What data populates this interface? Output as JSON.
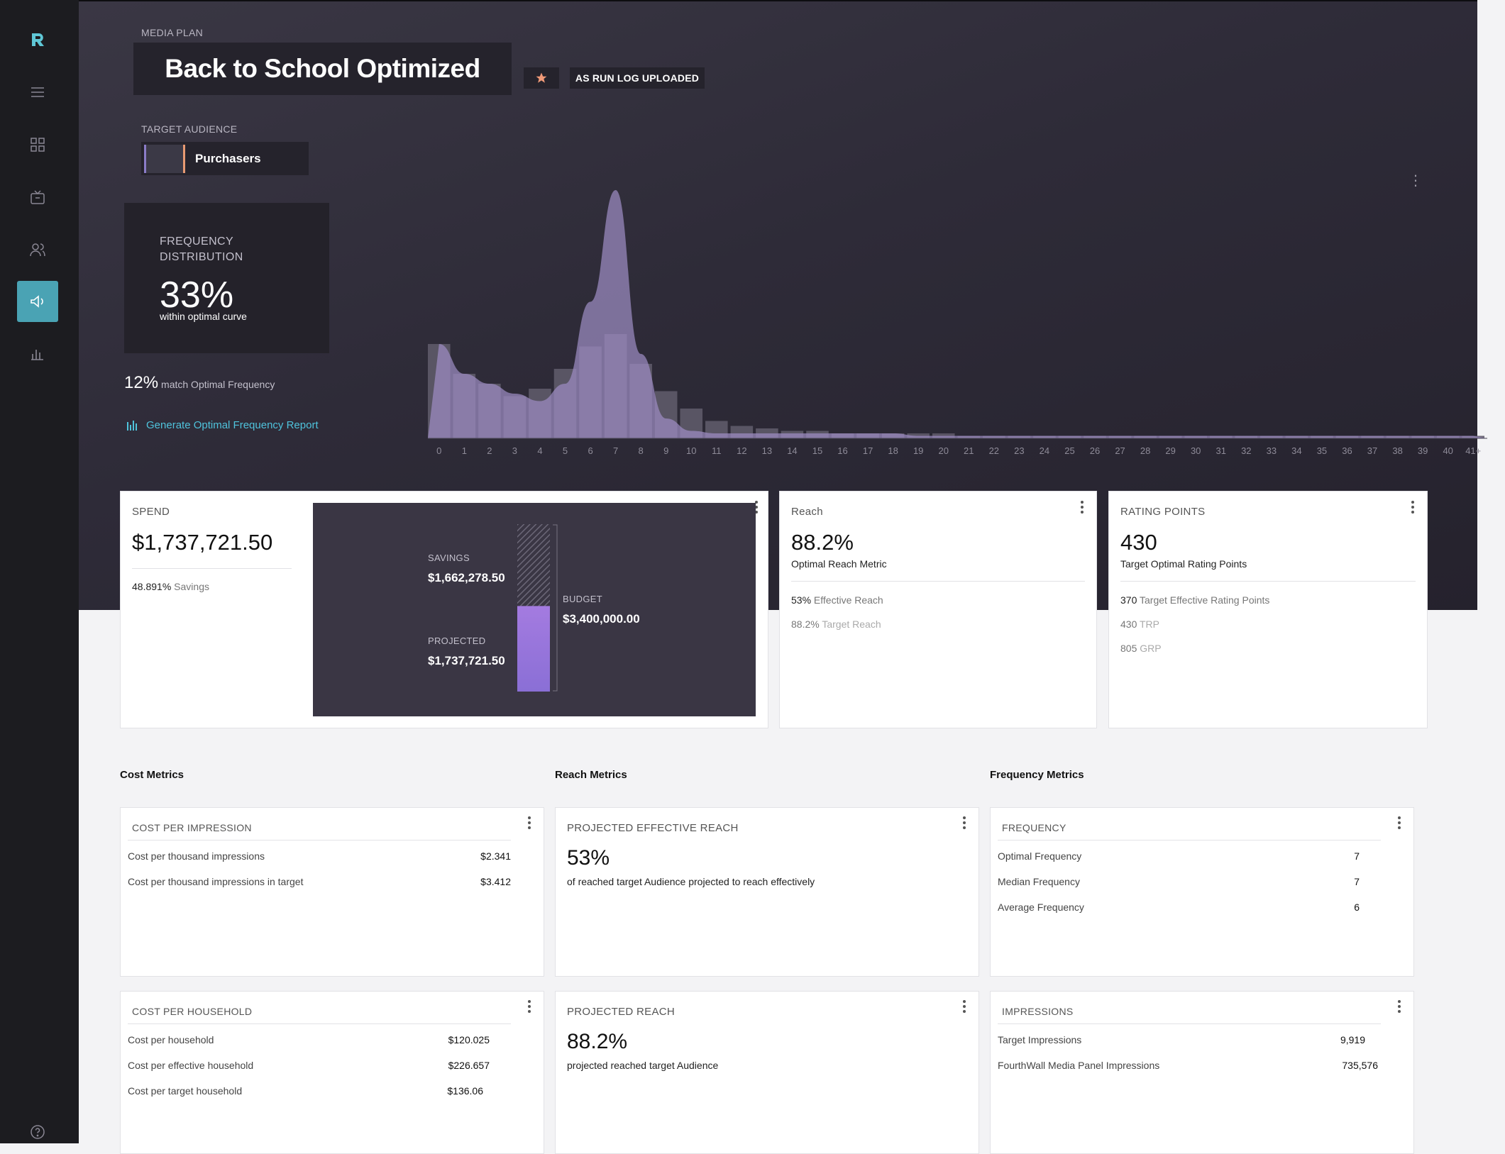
{
  "header": {
    "section_label": "MEDIA PLAN",
    "plan_title": "Back to School Optimized",
    "status_badge": "AS RUN LOG UPLOADED",
    "audience_label": "TARGET AUDIENCE",
    "audience_name": "Purchasers"
  },
  "frequency_distribution": {
    "title": "FREQUENCY DISTRIBUTION",
    "value": "33%",
    "subtitle": "within optimal curve",
    "match_value": "12%",
    "match_text": "match Optimal Frequency",
    "report_link": "Generate Optimal Frequency Report"
  },
  "chart_data": {
    "type": "bar",
    "categories": [
      "0",
      "1",
      "2",
      "3",
      "4",
      "5",
      "6",
      "7",
      "8",
      "9",
      "10",
      "11",
      "12",
      "13",
      "14",
      "15",
      "16",
      "17",
      "18",
      "19",
      "20",
      "21",
      "22",
      "23",
      "24",
      "25",
      "26",
      "27",
      "28",
      "29",
      "30",
      "31",
      "32",
      "33",
      "34",
      "35",
      "36",
      "37",
      "38",
      "39",
      "40",
      "41+"
    ],
    "values": [
      38,
      26,
      22,
      17,
      20,
      28,
      37,
      42,
      30,
      19,
      12,
      7,
      5,
      4,
      3,
      3,
      2,
      2,
      2,
      2,
      2,
      1,
      1,
      1,
      1,
      1,
      1,
      1,
      1,
      1,
      1,
      1,
      1,
      1,
      1,
      1,
      1,
      1,
      1,
      1,
      1,
      1
    ],
    "optimal_curve": [
      38,
      26,
      22,
      18,
      15,
      22,
      55,
      100,
      34,
      8,
      3,
      2,
      2,
      2,
      2,
      2,
      2,
      2,
      2,
      1,
      1,
      1,
      1,
      1,
      1,
      1,
      1,
      1,
      1,
      1,
      1,
      1,
      1,
      1,
      1,
      1,
      1,
      1,
      1,
      1,
      1,
      1
    ],
    "ylim": [
      0,
      100
    ],
    "grid": false,
    "colors": {
      "bar": "#5e5a69",
      "curve": "#9d8cc2"
    }
  },
  "spend": {
    "title": "SPEND",
    "value": "$1,737,721.50",
    "savings_pct": "48.891%",
    "savings_label": "Savings",
    "savings_title": "SAVINGS",
    "savings_value": "$1,662,278.50",
    "projected_title": "PROJECTED",
    "projected_value": "$1,737,721.50",
    "budget_title": "BUDGET",
    "budget_value": "$3,400,000.00",
    "projected_fraction": 0.511
  },
  "reach": {
    "title": "Reach",
    "value": "88.2%",
    "subtitle": "Optimal Reach Metric",
    "rows": [
      {
        "value": "53%",
        "label": "Effective Reach"
      },
      {
        "value": "88.2%",
        "label": "Target Reach"
      }
    ]
  },
  "rating_points": {
    "title": "RATING POINTS",
    "value": "430",
    "subtitle": "Target Optimal Rating Points",
    "rows": [
      {
        "value": "370",
        "label": "Target Effective Rating Points"
      },
      {
        "value": "430",
        "label": "TRP"
      },
      {
        "value": "805",
        "label": "GRP"
      }
    ]
  },
  "sections": {
    "cost": "Cost Metrics",
    "reach": "Reach Metrics",
    "frequency": "Frequency Metrics"
  },
  "cost_per_impression": {
    "title": "COST PER IMPRESSION",
    "rows": [
      {
        "label": "Cost per thousand impressions",
        "value": "$2.341"
      },
      {
        "label": "Cost per thousand impressions in target",
        "value": "$3.412"
      }
    ]
  },
  "projected_effective_reach": {
    "title": "PROJECTED EFFECTIVE REACH",
    "value": "53%",
    "subtitle": "of reached target Audience projected to reach effectively"
  },
  "frequency": {
    "title": "FREQUENCY",
    "rows": [
      {
        "label": "Optimal Frequency",
        "value": "7"
      },
      {
        "label": "Median Frequency",
        "value": "7"
      },
      {
        "label": "Average Frequency",
        "value": "6"
      }
    ]
  },
  "cost_per_household": {
    "title": "COST PER HOUSEHOLD",
    "rows": [
      {
        "label": "Cost per household",
        "value": "$120.025"
      },
      {
        "label": "Cost per effective household",
        "value": "$226.657"
      },
      {
        "label": "Cost per target household",
        "value": "$136.06"
      }
    ]
  },
  "projected_reach": {
    "title": "PROJECTED REACH",
    "value": "88.2%",
    "subtitle": "projected reached target Audience"
  },
  "impressions": {
    "title": "IMPRESSIONS",
    "rows": [
      {
        "label": "Target Impressions",
        "value": "9,919"
      },
      {
        "label": "FourthWall Media Panel Impressions",
        "value": "735,576"
      }
    ]
  },
  "sidebar": {
    "items": [
      "logo-icon",
      "menu-icon",
      "dashboard-icon",
      "tv-icon",
      "audience-icon",
      "megaphone-icon",
      "bar-chart-icon",
      "help-icon"
    ]
  }
}
